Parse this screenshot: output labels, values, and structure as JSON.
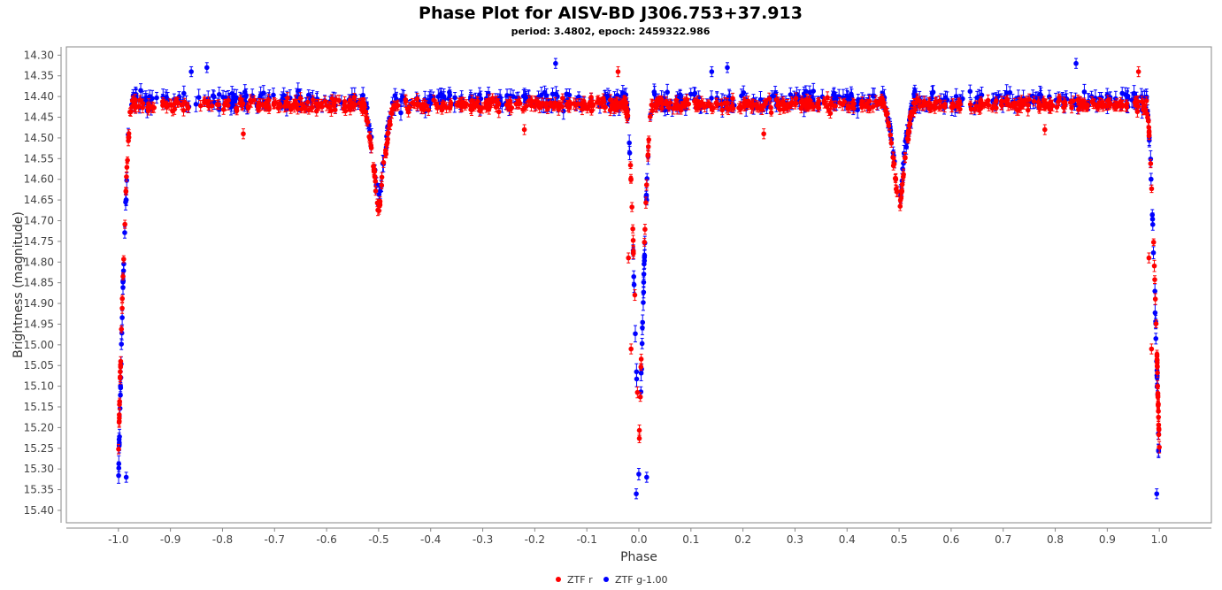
{
  "chart_data": {
    "type": "scatter",
    "title": "Phase Plot for AISV-BD J306.753+37.913",
    "subtitle": "period: 3.4802, epoch: 2459322.986",
    "xlabel": "Phase",
    "ylabel": "Brightness (magnitude)",
    "xlim": [
      -1.1,
      1.1
    ],
    "ylim": [
      15.43,
      14.28
    ],
    "y_inverted": true,
    "x_ticks": [
      "-1.0",
      "-0.9",
      "-0.8",
      "-0.7",
      "-0.6",
      "-0.5",
      "-0.4",
      "-0.3",
      "-0.2",
      "-0.1",
      "0.0",
      "0.1",
      "0.2",
      "0.3",
      "0.4",
      "0.5",
      "0.6",
      "0.7",
      "0.8",
      "0.9",
      "1.0"
    ],
    "y_ticks": [
      "14.30",
      "14.35",
      "14.40",
      "14.45",
      "14.50",
      "14.55",
      "14.60",
      "14.65",
      "14.70",
      "14.75",
      "14.80",
      "14.85",
      "14.90",
      "14.95",
      "15.00",
      "15.05",
      "15.10",
      "15.15",
      "15.20",
      "15.25",
      "15.30",
      "15.35",
      "15.40"
    ],
    "grid": false,
    "legend_position": "bottom-center",
    "series": [
      {
        "name": "ZTF r",
        "color": "#ff0000",
        "light_curve": {
          "baseline": 14.42,
          "scatter": 0.025,
          "primary_min": 15.26,
          "primary_half_width": 0.025,
          "secondary_min": 14.69,
          "secondary_half_width": 0.03
        },
        "outliers": [
          [
            -0.76,
            14.49
          ],
          [
            0.24,
            14.49
          ],
          [
            -0.04,
            14.34
          ],
          [
            0.96,
            14.34
          ],
          [
            -0.22,
            14.48
          ],
          [
            0.78,
            14.48
          ],
          [
            -0.02,
            14.79
          ],
          [
            0.98,
            14.79
          ],
          [
            -0.015,
            15.01
          ],
          [
            0.985,
            15.01
          ]
        ]
      },
      {
        "name": "ZTF g-1.00",
        "color": "#0000ff",
        "light_curve": {
          "baseline": 14.41,
          "scatter": 0.035,
          "primary_min": 15.33,
          "primary_half_width": 0.025,
          "secondary_min": 14.66,
          "secondary_half_width": 0.03
        },
        "outliers": [
          [
            -0.985,
            15.32
          ],
          [
            0.015,
            15.32
          ],
          [
            -0.005,
            15.36
          ],
          [
            0.995,
            15.36
          ],
          [
            -0.985,
            14.65
          ],
          [
            0.015,
            14.65
          ],
          [
            -0.86,
            14.34
          ],
          [
            0.14,
            14.34
          ],
          [
            -0.16,
            14.32
          ],
          [
            0.84,
            14.32
          ],
          [
            -0.83,
            14.33
          ],
          [
            0.17,
            14.33
          ]
        ]
      }
    ]
  }
}
